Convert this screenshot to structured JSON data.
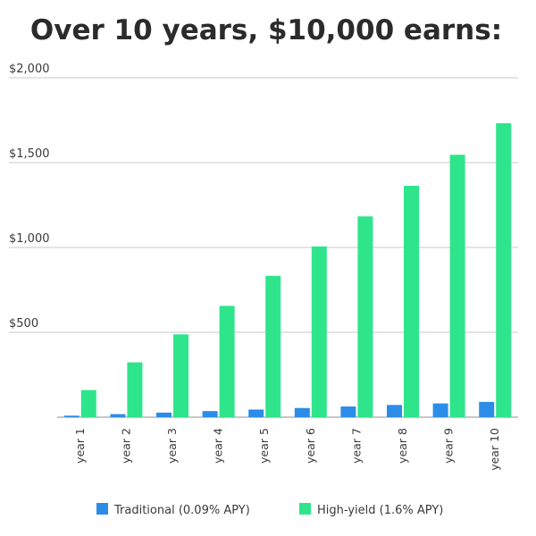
{
  "chart_data": {
    "type": "bar",
    "title": "Over 10 years, $10,000 earns:",
    "categories": [
      "year 1",
      "year 2",
      "year 3",
      "year 4",
      "year 5",
      "year 6",
      "year 7",
      "year 8",
      "year 9",
      "year 10"
    ],
    "series": [
      {
        "name": "Traditional (0.09% APY)",
        "color": "#2b8de8",
        "values": [
          9,
          18,
          27,
          36,
          45,
          54,
          63,
          72,
          81,
          90
        ]
      },
      {
        "name": "High-yield (1.6% APY)",
        "color": "#2ee58c",
        "values": [
          160,
          323,
          488,
          656,
          833,
          1006,
          1183,
          1363,
          1546,
          1732
        ]
      }
    ],
    "ylim": [
      0,
      2000
    ],
    "yticks": [
      500,
      1000,
      1500,
      2000
    ],
    "ytick_labels": [
      "$500",
      "$1,000",
      "$1,500",
      "$2,000"
    ],
    "grid": true,
    "legend": "bottom"
  }
}
